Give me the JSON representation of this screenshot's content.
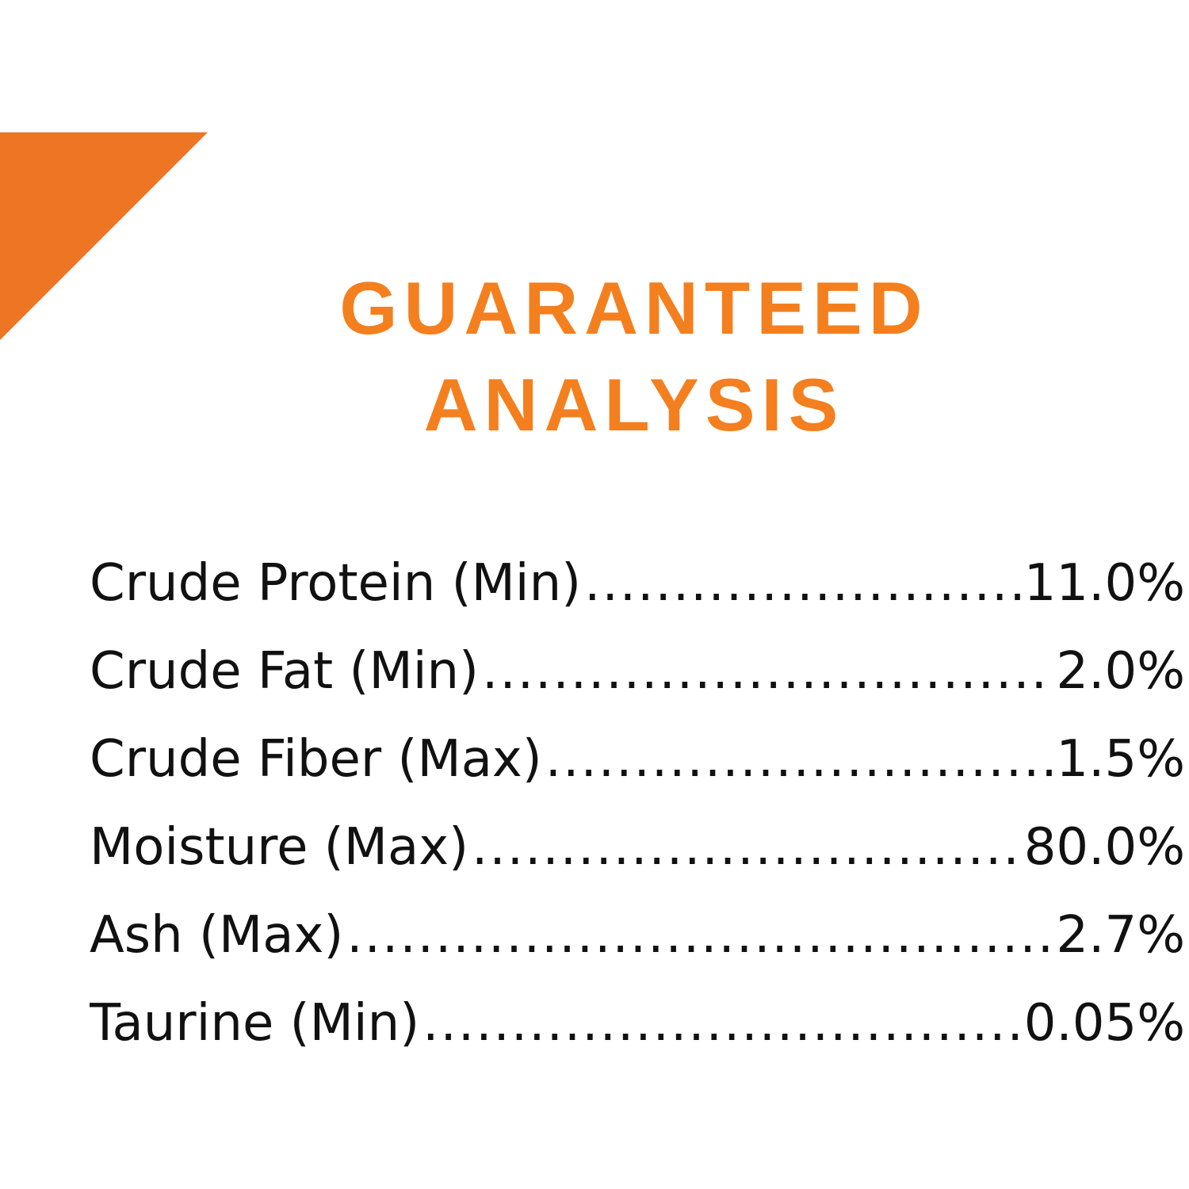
{
  "accent_color": "#f47f1f",
  "title": {
    "line1": "GUARANTEED",
    "line2": "ANALYSIS"
  },
  "analysis": [
    {
      "nutrient": "Crude Protein (Min)",
      "value": "11.0%"
    },
    {
      "nutrient": "Crude Fat (Min)",
      "value": "2.0%"
    },
    {
      "nutrient": "Crude Fiber (Max)",
      "value": "1.5%"
    },
    {
      "nutrient": "Moisture (Max)",
      "value": "80.0%"
    },
    {
      "nutrient": "Ash (Max)",
      "value": "2.7%"
    },
    {
      "nutrient": "Taurine (Min)",
      "value": "0.05%"
    }
  ]
}
